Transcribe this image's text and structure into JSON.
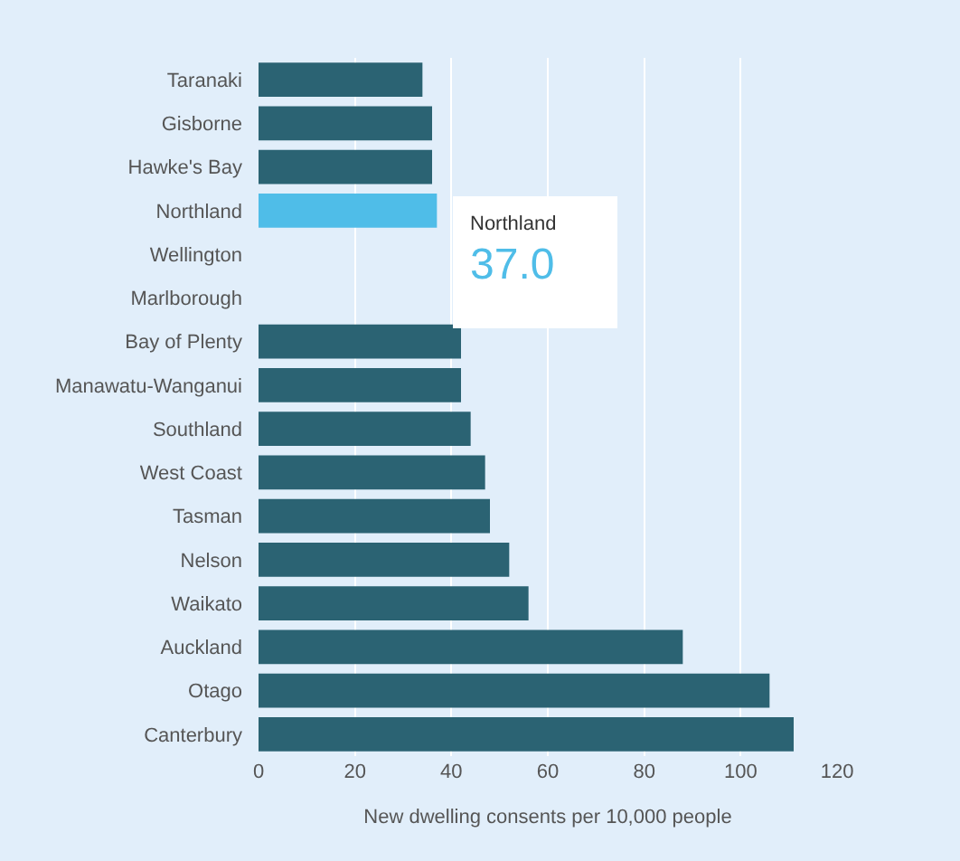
{
  "chart_data": {
    "type": "bar",
    "orientation": "horizontal",
    "xlabel": "New dwelling consents per 10,000 people",
    "categories": [
      "Taranaki",
      "Gisborne",
      "Hawke's Bay",
      "Northland",
      "Wellington",
      "Marlborough",
      "Bay of Plenty",
      "Manawatu-Wanganui",
      "Southland",
      "West Coast",
      "Tasman",
      "Nelson",
      "Waikato",
      "Auckland",
      "Otago",
      "Canterbury"
    ],
    "values": [
      34,
      36,
      36,
      37.0,
      null,
      null,
      42,
      42,
      44,
      47,
      48,
      52,
      56,
      88,
      106,
      111
    ],
    "colors": [
      "#2b6373",
      "#2b6373",
      "#2b6373",
      "#4fbde8",
      "#2b6373",
      "#2b6373",
      "#2b6373",
      "#2b6373",
      "#2b6373",
      "#2b6373",
      "#2b6373",
      "#2b6373",
      "#2b6373",
      "#2b6373",
      "#2b6373",
      "#2b6373"
    ],
    "xlim": [
      0,
      120
    ],
    "xticks": [
      0,
      20,
      40,
      60,
      80,
      100,
      120
    ],
    "grid": "x",
    "annotations": [
      {
        "text": "Northland",
        "x": 37.0,
        "y": "Northland"
      },
      {
        "text": "37.0",
        "x": 37.0,
        "y": "Northland"
      }
    ]
  }
}
